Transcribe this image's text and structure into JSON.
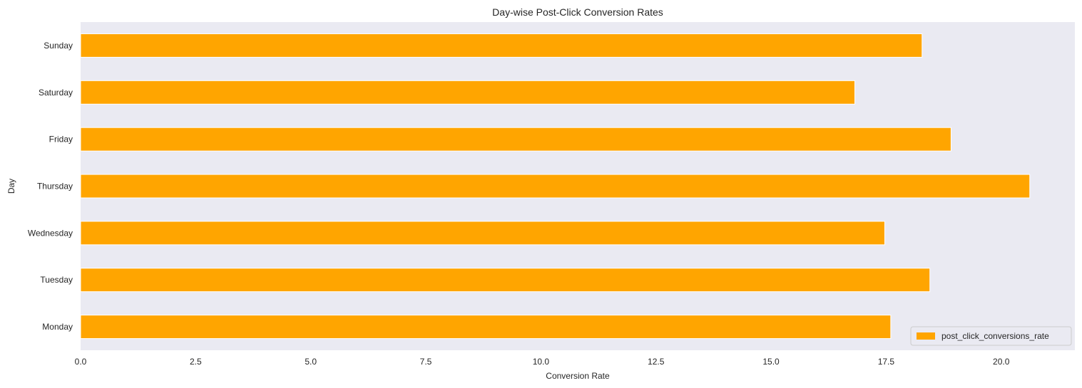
{
  "chart_data": {
    "type": "bar",
    "orientation": "horizontal",
    "title": "Day-wise Post-Click Conversion Rates",
    "xlabel": "Conversion Rate",
    "ylabel": "Day",
    "categories": [
      "Monday",
      "Tuesday",
      "Wednesday",
      "Thursday",
      "Friday",
      "Saturday",
      "Sunday"
    ],
    "series": [
      {
        "name": "post_click_conversions_rate",
        "values": [
          17.6,
          18.45,
          17.47,
          20.62,
          18.91,
          16.82,
          18.28
        ],
        "color": "#FFA500"
      }
    ],
    "xlim": [
      0,
      21.6
    ],
    "xticks": [
      "0.0",
      "2.5",
      "5.0",
      "7.5",
      "10.0",
      "12.5",
      "15.0",
      "17.5",
      "20.0"
    ],
    "grid": false,
    "legend_position": "lower-right",
    "background_color": "#EAEAF2"
  }
}
